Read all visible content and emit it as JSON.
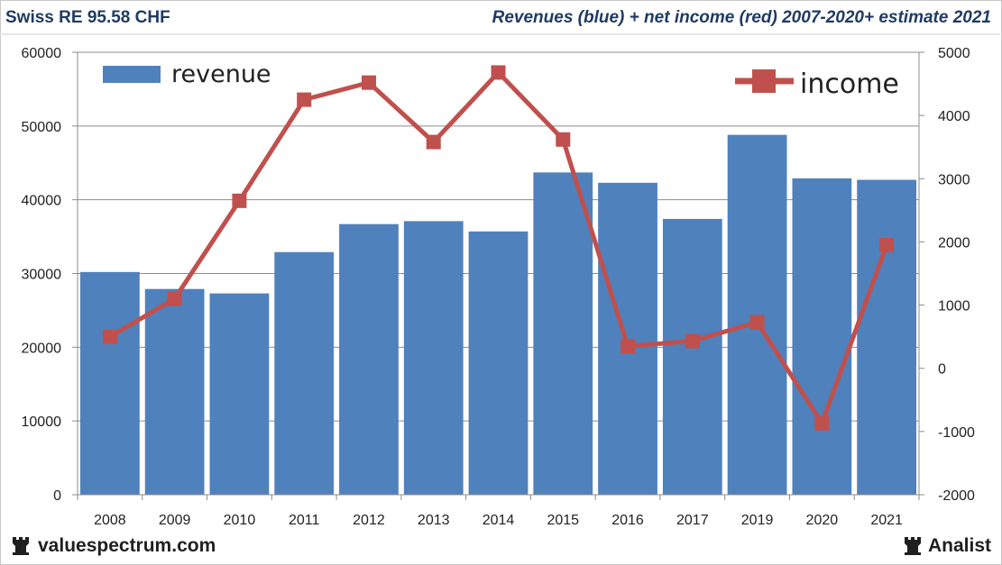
{
  "header": {
    "left_title": "Swiss RE 95.58 CHF",
    "right_title": "Revenues (blue) + net income (red) 2007-2020+ estimate 2021"
  },
  "footer": {
    "left_brand": "valuespectrum.com",
    "right_brand": "Analist",
    "left_icon": "rook-icon",
    "right_icon": "rook-icon"
  },
  "chart_data": {
    "type": "bar",
    "categories": [
      "2008",
      "2009",
      "2010",
      "2011",
      "2012",
      "2013",
      "2014",
      "2015",
      "2016",
      "2017",
      "2019",
      "2020",
      "2021"
    ],
    "series": [
      {
        "name": "revenue",
        "type": "bar",
        "axis": "left",
        "color": "#4f81bd",
        "values": [
          30200,
          27900,
          27300,
          32900,
          36700,
          37100,
          35700,
          43700,
          42300,
          37400,
          48800,
          42900,
          42700
        ]
      },
      {
        "name": "income",
        "type": "line",
        "axis": "right",
        "color": "#c0504d",
        "values": [
          500,
          1100,
          2650,
          4250,
          4520,
          3580,
          4680,
          3620,
          350,
          430,
          730,
          -870,
          1950
        ]
      }
    ],
    "y_left": {
      "min": 0,
      "max": 60000,
      "ticks": [
        "0",
        "10000",
        "20000",
        "30000",
        "40000",
        "50000",
        "60000"
      ]
    },
    "y_right": {
      "min": -2000,
      "max": 5000,
      "ticks": [
        "-2000",
        "-1000",
        "0",
        "1000",
        "2000",
        "3000",
        "4000",
        "5000"
      ]
    },
    "grid": true,
    "legend": [
      "top-left: revenue",
      "top-right: income"
    ]
  }
}
